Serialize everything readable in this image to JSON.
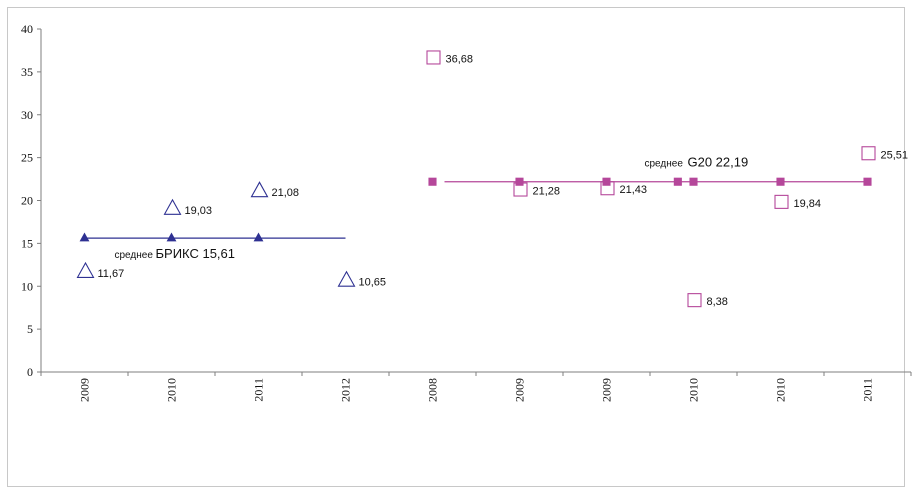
{
  "chart_data": {
    "type": "scatter",
    "title": "",
    "xlabel": "",
    "ylabel": "",
    "ylim": [
      0,
      40
    ],
    "yticks": [
      0,
      5,
      10,
      15,
      20,
      25,
      30,
      35,
      40
    ],
    "grid": false,
    "legend": "none",
    "categories": [
      "2009",
      "2010",
      "2011",
      "2012",
      "2008",
      "2009",
      "2009",
      "2010",
      "2010",
      "2011"
    ],
    "colors": {
      "brics": "#2e3192",
      "g20": "#b5479a",
      "axis": "#7f7f7f"
    },
    "series": [
      {
        "marker": "triangle-open",
        "points": [
          {
            "x": 0,
            "y": 11.67,
            "label": "11,67"
          },
          {
            "x": 1,
            "y": 19.03,
            "label": "19,03"
          },
          {
            "x": 2,
            "y": 21.08,
            "label": "21,08"
          },
          {
            "x": 3,
            "y": 10.65,
            "label": "10,65"
          }
        ]
      },
      {
        "marker": "square-open",
        "points": [
          {
            "x": 4,
            "y": 36.68,
            "label": "36,68"
          },
          {
            "x": 5,
            "y": 21.28,
            "label": "21,28"
          },
          {
            "x": 6,
            "y": 21.43,
            "label": "21,43"
          },
          {
            "x": 7,
            "y": 8.38,
            "label": "8,38"
          },
          {
            "x": 8,
            "y": 19.84,
            "label": "19,84"
          },
          {
            "x": 9,
            "y": 25.51,
            "label": "25,51"
          }
        ]
      },
      {
        "marker": "triangle-filled",
        "line": true,
        "y": 15.61,
        "x_points": [
          0,
          1,
          2
        ],
        "x_line_end": 3.0,
        "label_prefix": "среднее",
        "label_main": "БРИКС 15,61"
      },
      {
        "marker": "square-filled",
        "line": true,
        "y": 22.19,
        "x_points": [
          4,
          5,
          6,
          6.82,
          7,
          8,
          9
        ],
        "x_line_start": 4,
        "x_line_end": 9,
        "label_prefix": "среднее",
        "label_main": "G20 22,19"
      }
    ]
  }
}
